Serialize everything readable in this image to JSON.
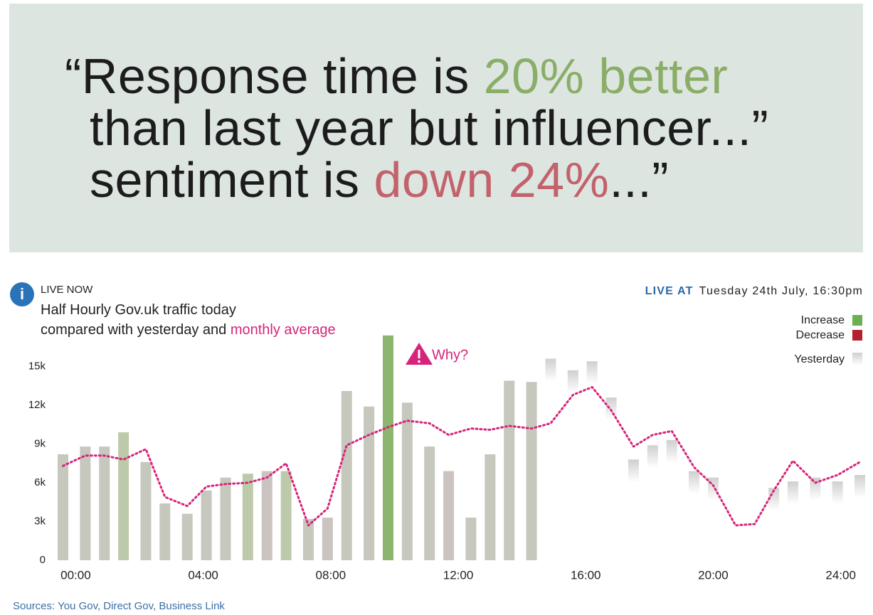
{
  "quote": {
    "lines": [
      {
        "parts": [
          {
            "text": "“Response time is "
          },
          {
            "text": "20% better",
            "color": "#8aae67"
          }
        ]
      },
      {
        "parts": [
          {
            "text": "than last year but influencer...”"
          }
        ]
      },
      {
        "parts": [
          {
            "text": "sentiment is "
          },
          {
            "text": "down 24%",
            "color": "#c2626b"
          },
          {
            "text": "...”"
          }
        ]
      }
    ]
  },
  "chart_data": {
    "type": "bar",
    "live_now": "LIVE NOW",
    "title": "Half Hourly Gov.uk traffic today",
    "subtitle": "compared with yesterday and ",
    "live_at_label": "LIVE AT",
    "live_at": "Tuesday 24th July, 16:30pm",
    "annotation": "Why?",
    "xlim": [
      -0.5,
      24.7
    ],
    "xticks": [
      {
        "value": 0,
        "label": "00:00"
      },
      {
        "value": 4,
        "label": "04:00"
      },
      {
        "value": 8,
        "label": "08:00"
      },
      {
        "value": 12,
        "label": "12:00"
      },
      {
        "value": 16,
        "label": "16:00"
      },
      {
        "value": 20,
        "label": "20:00"
      },
      {
        "value": 24,
        "label": "24:00"
      }
    ],
    "ylim": [
      0,
      17500
    ],
    "yticks": [
      0,
      {
        "value": 3000,
        "label": "3k"
      },
      {
        "value": 6000,
        "label": "6k"
      },
      {
        "value": 9000,
        "label": "9k"
      },
      {
        "value": 12000,
        "label": "12k"
      },
      {
        "value": 15000,
        "label": "15k"
      }
    ],
    "grid": false,
    "series": [
      {
        "type": "bar",
        "x": [
          -0.4,
          0.3,
          0.9,
          1.5,
          2.2,
          2.8,
          3.5,
          4.1,
          4.7,
          5.4,
          6.0,
          6.6,
          7.3,
          7.9,
          8.5,
          9.2,
          9.8,
          10.4,
          11.1,
          11.7,
          12.4,
          13.0,
          13.6,
          14.3
        ],
        "values": [
          8200,
          8800,
          8800,
          9900,
          7600,
          4400,
          3600,
          5400,
          6400,
          6700,
          6900,
          6900,
          3200,
          3300,
          13100,
          11900,
          17400,
          12200,
          8800,
          6900,
          3300,
          8200,
          13900,
          13800
        ],
        "colors": [
          "#c6c7bd",
          "#c6c7bd",
          "#c6c7bd",
          "#bdcaa9",
          "#c6c7bd",
          "#c6c7bd",
          "#c6c7bd",
          "#c6c7bd",
          "#c6c7bd",
          "#bdcaa9",
          "#cbc3c0",
          "#bdcaa9",
          "#c6c7bd",
          "#cbc3c0",
          "#c6c7bd",
          "#c6c7bd",
          "#8cb56f",
          "#c6c7bd",
          "#c6c7bd",
          "#cbc3c0",
          "#c6c7bd",
          "#c6c7bd",
          "#c6c7bd",
          "#c6c7bd"
        ]
      },
      {
        "type": "ghost",
        "name": "Yesterday",
        "color": "#cfcfcf",
        "x": [
          14.9,
          15.6,
          16.2,
          16.8,
          17.5,
          18.1,
          18.7,
          19.4,
          20.0,
          21.9,
          22.5,
          23.2,
          23.9,
          24.6
        ],
        "values": [
          15600,
          14700,
          15400,
          12600,
          7800,
          8900,
          9300,
          6900,
          6400,
          5600,
          6100,
          6400,
          6100,
          6600
        ]
      },
      {
        "type": "line",
        "name": "monthly average",
        "color": "#d6247a",
        "x": [
          -0.4,
          0.3,
          0.9,
          1.5,
          2.2,
          2.8,
          3.5,
          4.1,
          4.7,
          5.4,
          6.0,
          6.6,
          7.3,
          7.9,
          8.5,
          9.2,
          9.8,
          10.4,
          11.1,
          11.7,
          12.4,
          13.0,
          13.6,
          14.3,
          14.9,
          15.6,
          16.2,
          16.8,
          17.5,
          18.1,
          18.7,
          19.4,
          20.0,
          20.7,
          21.3,
          21.9,
          22.5,
          23.2,
          23.9,
          24.6
        ],
        "values": [
          7300,
          8100,
          8100,
          7800,
          8600,
          4900,
          4200,
          5700,
          5900,
          6000,
          6400,
          7500,
          2700,
          4000,
          8900,
          9700,
          10300,
          10800,
          10600,
          9700,
          10200,
          10100,
          10400,
          10200,
          10600,
          12800,
          13400,
          11600,
          8800,
          9700,
          10000,
          7200,
          5800,
          2700,
          2800,
          5400,
          7700,
          6000,
          6600,
          7600
        ]
      }
    ],
    "legend": [
      {
        "name": "Increase",
        "color": "#6db04f"
      },
      {
        "name": "Decrease",
        "color": "#b3202e"
      }
    ]
  },
  "sources": "Sources: You Gov, Direct Gov, Business Link"
}
